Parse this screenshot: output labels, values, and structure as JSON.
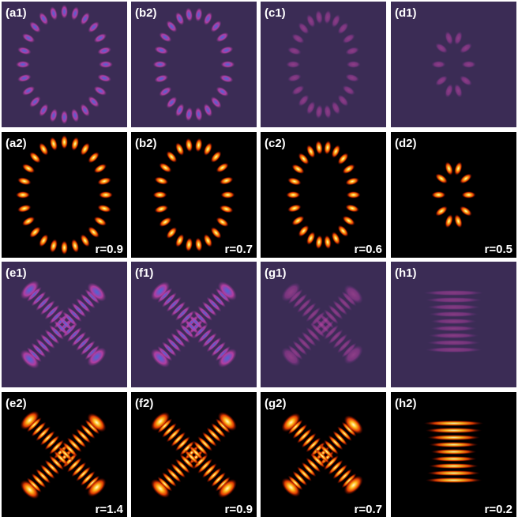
{
  "panels": [
    {
      "label": "(a1)"
    },
    {
      "label": "(b2)"
    },
    {
      "label": "(c1)"
    },
    {
      "label": "(d1)"
    },
    {
      "label": "(a2)",
      "r": "r=0.9"
    },
    {
      "label": "(b2)",
      "r": "r=0.7"
    },
    {
      "label": "(c2)",
      "r": "r=0.6"
    },
    {
      "label": "(d2)",
      "r": "r=0.5"
    },
    {
      "label": "(e1)"
    },
    {
      "label": "(f1)"
    },
    {
      "label": "(g1)"
    },
    {
      "label": "(h1)"
    },
    {
      "label": "(e2)",
      "r": "r=1.4"
    },
    {
      "label": "(f2)",
      "r": "r=0.9"
    },
    {
      "label": "(g2)",
      "r": "r=0.7"
    },
    {
      "label": "(h2)",
      "r": "r=0.2"
    }
  ]
}
